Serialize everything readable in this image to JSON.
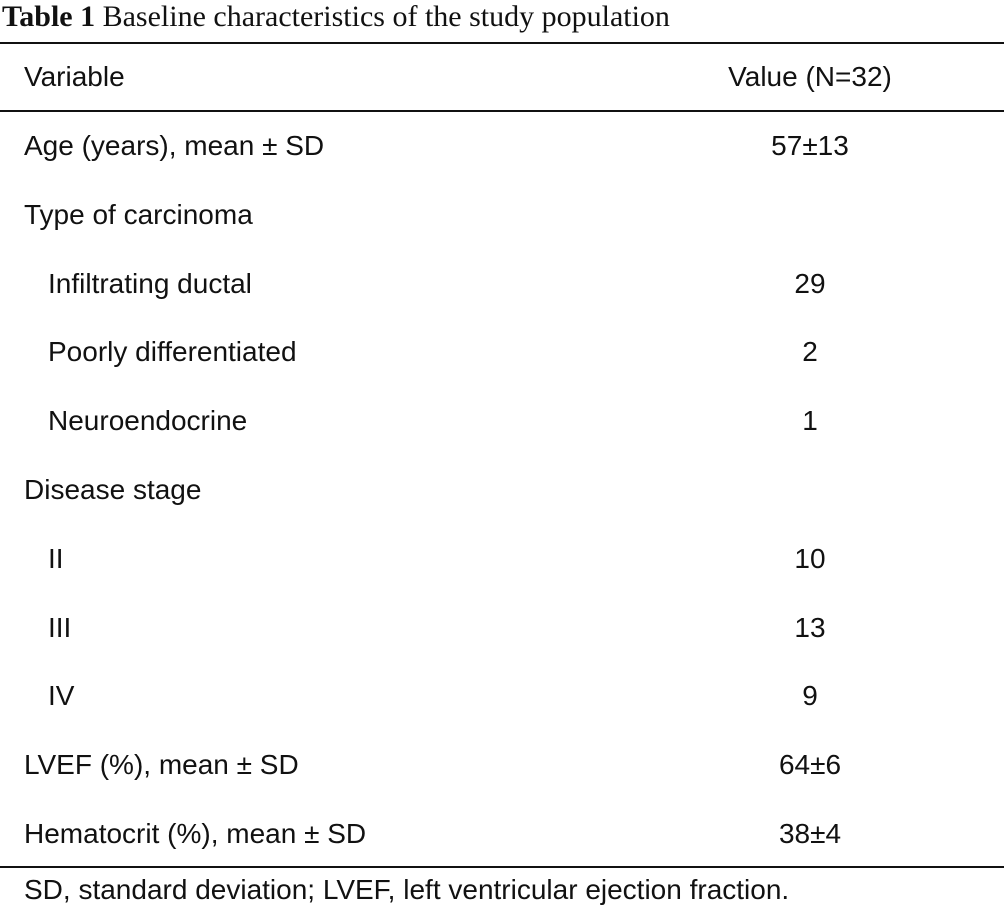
{
  "caption": {
    "label": "Table 1",
    "text": "Baseline characteristics of the study population"
  },
  "table": {
    "headers": {
      "variable": "Variable",
      "value": "Value (N=32)"
    },
    "rows": [
      {
        "variable": "Age (years), mean ± SD",
        "value": "57±13"
      },
      {
        "variable": "Type of carcinoma",
        "value": ""
      },
      {
        "variable": "Infiltrating ductal",
        "value": "29"
      },
      {
        "variable": "Poorly differentiated",
        "value": "2"
      },
      {
        "variable": "Neuroendocrine",
        "value": "1"
      },
      {
        "variable": "Disease stage",
        "value": ""
      },
      {
        "variable": "II",
        "value": "10"
      },
      {
        "variable": "III",
        "value": "13"
      },
      {
        "variable": "IV",
        "value": "9"
      },
      {
        "variable": "LVEF (%), mean ± SD",
        "value": "64±6"
      },
      {
        "variable": "Hematocrit (%), mean ± SD",
        "value": "38±4"
      }
    ]
  },
  "footnote": "SD, standard deviation; LVEF, left ventricular ejection fraction."
}
